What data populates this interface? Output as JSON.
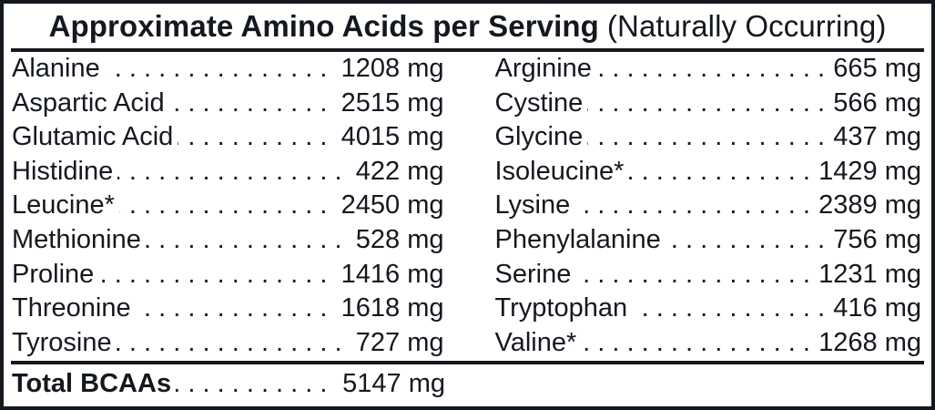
{
  "title": {
    "main": "Approximate Amino Acids per Serving",
    "suffix": "(Naturally Occurring)"
  },
  "columns": {
    "left": [
      {
        "name": "Alanine",
        "value": "1208 mg"
      },
      {
        "name": "Aspartic Acid",
        "value": "2515 mg"
      },
      {
        "name": "Glutamic Acid",
        "value": "4015 mg"
      },
      {
        "name": "Histidine",
        "value": "422 mg"
      },
      {
        "name": "Leucine*",
        "value": "2450 mg"
      },
      {
        "name": "Methionine",
        "value": "528 mg"
      },
      {
        "name": "Proline",
        "value": "1416 mg"
      },
      {
        "name": "Threonine",
        "value": "1618 mg"
      },
      {
        "name": "Tyrosine",
        "value": "727 mg"
      }
    ],
    "right": [
      {
        "name": "Arginine",
        "value": "665 mg"
      },
      {
        "name": "Cystine",
        "value": "566 mg"
      },
      {
        "name": "Glycine",
        "value": "437 mg"
      },
      {
        "name": "Isoleucine*",
        "value": "1429 mg"
      },
      {
        "name": "Lysine",
        "value": "2389 mg"
      },
      {
        "name": "Phenylalanine",
        "value": "756 mg"
      },
      {
        "name": "Serine",
        "value": "1231 mg"
      },
      {
        "name": "Tryptophan",
        "value": "416 mg"
      },
      {
        "name": "Valine*",
        "value": "1268 mg"
      }
    ]
  },
  "total": {
    "label": "Total BCAAs",
    "value": "5147 mg"
  },
  "colors": {
    "ink": "#14181f",
    "background": "#ffffff"
  },
  "unit": "mg"
}
